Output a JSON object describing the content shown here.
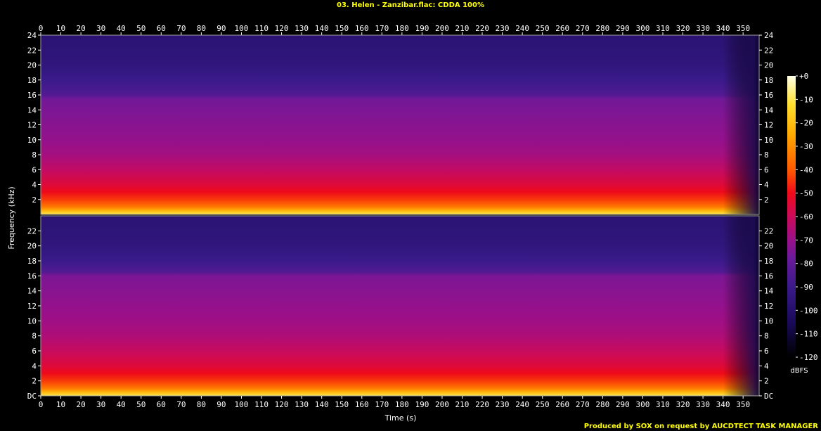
{
  "title": "03. Helen - Zanzibar.flac: CDDA 100%",
  "credit": "Produced by SOX on request by AUCDTECT TASK MANAGER",
  "colors": {
    "background": "#000000",
    "title_text": "#ffff00",
    "axis_text": "#ffffff",
    "credit_text": "#ffff00",
    "frame": "#a0a0a0"
  },
  "chart_data": {
    "type": "heatmap",
    "subtype": "spectrogram",
    "title": "03. Helen - Zanzibar.flac: CDDA 100%",
    "xlabel": "Time (s)",
    "ylabel": "Frequency (kHz)",
    "xlim": [
      0,
      358
    ],
    "x_ticks": [
      0,
      10,
      20,
      30,
      40,
      50,
      60,
      70,
      80,
      90,
      100,
      110,
      120,
      130,
      140,
      150,
      160,
      170,
      180,
      190,
      200,
      210,
      220,
      230,
      240,
      250,
      260,
      270,
      280,
      290,
      300,
      310,
      320,
      330,
      340,
      350
    ],
    "channels": [
      {
        "name": "top",
        "ylim": [
          0,
          24
        ],
        "y_ticks": [
          2,
          4,
          6,
          8,
          10,
          12,
          14,
          16,
          18,
          20,
          22,
          24
        ],
        "y_tick_labels": [
          "2",
          "4",
          "6",
          "8",
          "10",
          "12",
          "14",
          "16",
          "18",
          "20",
          "22",
          "24"
        ],
        "profile_kHz_dBFS": [
          [
            0,
            -10
          ],
          [
            0.5,
            -22
          ],
          [
            1,
            -34
          ],
          [
            2,
            -44
          ],
          [
            3,
            -50
          ],
          [
            4,
            -55
          ],
          [
            6,
            -62
          ],
          [
            8,
            -68
          ],
          [
            10,
            -71
          ],
          [
            12,
            -73
          ],
          [
            14,
            -75
          ],
          [
            15.5,
            -77
          ],
          [
            16,
            -84
          ],
          [
            18,
            -90
          ],
          [
            20,
            -94
          ],
          [
            22,
            -96
          ],
          [
            24,
            -97
          ]
        ],
        "fade_out_start_s": 340,
        "end_s": 355
      },
      {
        "name": "bottom",
        "ylim": [
          0,
          24
        ],
        "y_ticks": [
          0,
          2,
          4,
          6,
          8,
          10,
          12,
          14,
          16,
          18,
          20,
          22
        ],
        "y_tick_labels": [
          "DC",
          "2",
          "4",
          "6",
          "8",
          "10",
          "12",
          "14",
          "16",
          "18",
          "20",
          "22"
        ],
        "profile_kHz_dBFS": [
          [
            0,
            -10
          ],
          [
            0.5,
            -22
          ],
          [
            1,
            -34
          ],
          [
            2,
            -44
          ],
          [
            3,
            -50
          ],
          [
            4,
            -55
          ],
          [
            6,
            -61
          ],
          [
            8,
            -66
          ],
          [
            10,
            -69
          ],
          [
            12,
            -71
          ],
          [
            14,
            -73
          ],
          [
            16,
            -75
          ],
          [
            16.5,
            -84
          ],
          [
            18,
            -90
          ],
          [
            20,
            -94
          ],
          [
            22,
            -96
          ],
          [
            24,
            -97
          ]
        ],
        "fade_out_start_s": 340,
        "end_s": 355
      }
    ],
    "colorbar": {
      "label": "dBFS",
      "range": [
        -120,
        0
      ],
      "ticks": [
        0,
        -10,
        -20,
        -30,
        -40,
        -50,
        -60,
        -70,
        -80,
        -90,
        -100,
        -110,
        -120
      ],
      "tick_labels": [
        "+0",
        "-10",
        "-20",
        "-30",
        "-40",
        "-50",
        "-60",
        "-70",
        "-80",
        "-90",
        "-100",
        "-110",
        "-120"
      ],
      "stops": [
        {
          "value": -120,
          "color": "#000000"
        },
        {
          "value": -105,
          "color": "#1a0a5a"
        },
        {
          "value": -90,
          "color": "#3a1a8a"
        },
        {
          "value": -78,
          "color": "#6a1a9a"
        },
        {
          "value": -70,
          "color": "#9a108a"
        },
        {
          "value": -60,
          "color": "#cc0a5a"
        },
        {
          "value": -50,
          "color": "#ee0a1a"
        },
        {
          "value": -40,
          "color": "#ff5a00"
        },
        {
          "value": -25,
          "color": "#ffaa00"
        },
        {
          "value": -12,
          "color": "#ffe030"
        },
        {
          "value": 0,
          "color": "#ffffe8"
        }
      ]
    }
  }
}
